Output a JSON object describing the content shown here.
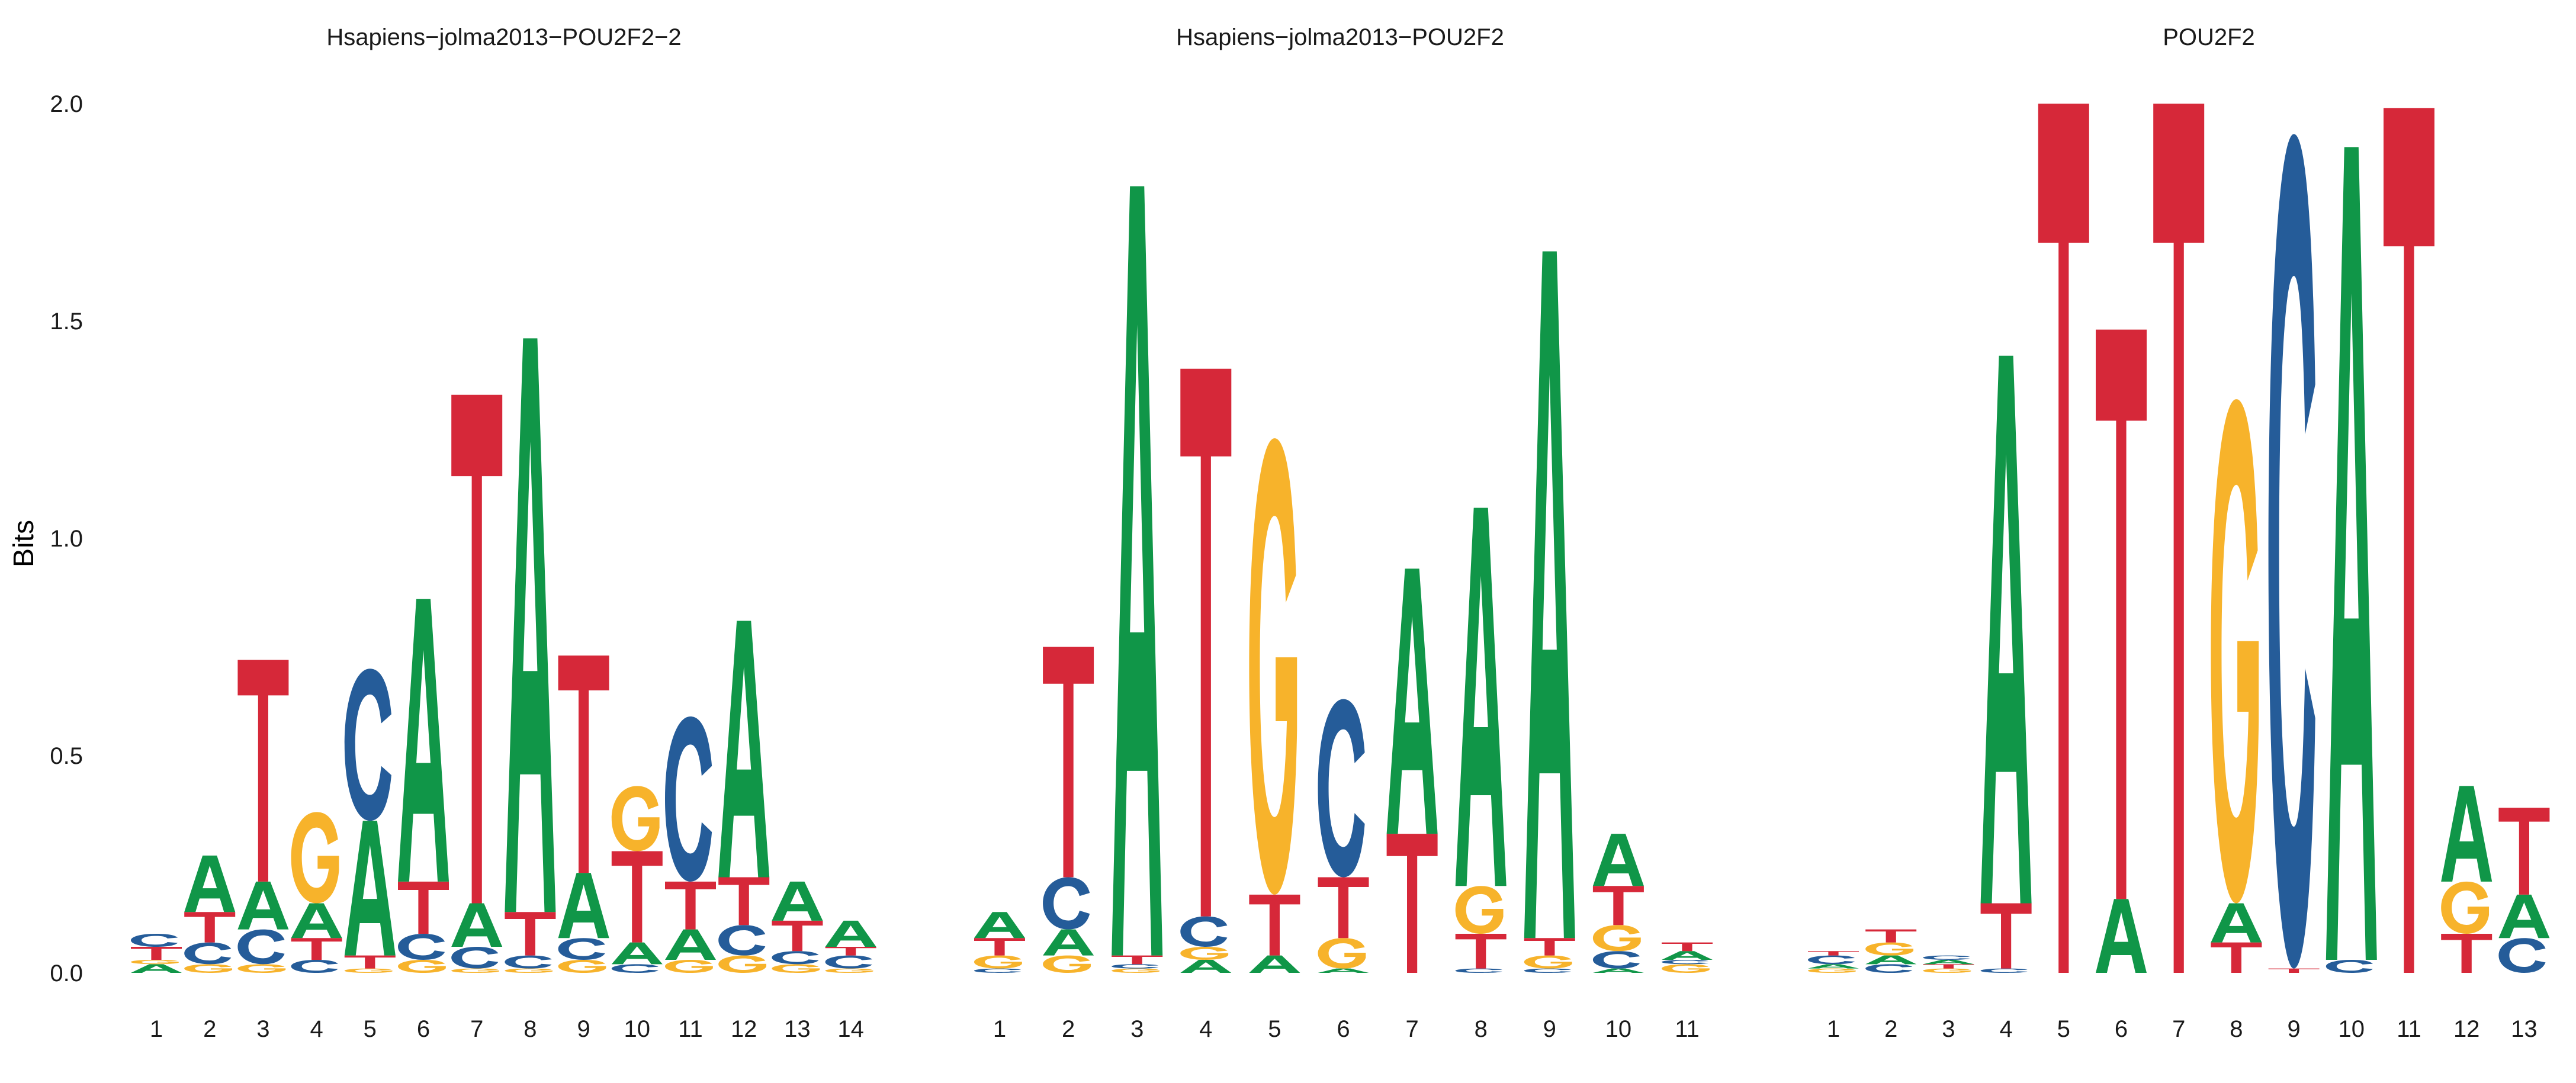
{
  "chart_data": {
    "type": "sequence-logo",
    "ylabel": "Bits",
    "ylim": [
      0,
      2
    ],
    "yticks": [
      0.0,
      0.5,
      1.0,
      1.5,
      2.0
    ],
    "ytick_labels": [
      "0.0",
      "0.5",
      "1.0",
      "1.5",
      "2.0"
    ],
    "grid": false,
    "colors": {
      "A": "#109648",
      "C": "#255c99",
      "G": "#f7b32b",
      "T": "#d62839"
    },
    "panels": [
      {
        "title": "Hsapiens−jolma2013−POU2F2−2",
        "positions": [
          {
            "pos": "1",
            "stack": [
              [
                "A",
                0.02
              ],
              [
                "G",
                0.01
              ],
              [
                "T",
                0.03
              ],
              [
                "C",
                0.03
              ]
            ]
          },
          {
            "pos": "2",
            "stack": [
              [
                "G",
                0.02
              ],
              [
                "C",
                0.05
              ],
              [
                "T",
                0.07
              ],
              [
                "A",
                0.13
              ]
            ]
          },
          {
            "pos": "3",
            "stack": [
              [
                "G",
                0.02
              ],
              [
                "C",
                0.08
              ],
              [
                "A",
                0.11
              ],
              [
                "T",
                0.51
              ]
            ]
          },
          {
            "pos": "4",
            "stack": [
              [
                "C",
                0.03
              ],
              [
                "T",
                0.05
              ],
              [
                "A",
                0.08
              ],
              [
                "G",
                0.21
              ]
            ]
          },
          {
            "pos": "5",
            "stack": [
              [
                "G",
                0.01
              ],
              [
                "T",
                0.03
              ],
              [
                "A",
                0.31
              ],
              [
                "C",
                0.35
              ]
            ]
          },
          {
            "pos": "6",
            "stack": [
              [
                "G",
                0.03
              ],
              [
                "C",
                0.06
              ],
              [
                "T",
                0.12
              ],
              [
                "A",
                0.65
              ]
            ]
          },
          {
            "pos": "7",
            "stack": [
              [
                "G",
                0.01
              ],
              [
                "C",
                0.05
              ],
              [
                "A",
                0.1
              ],
              [
                "T",
                1.17
              ]
            ]
          },
          {
            "pos": "8",
            "stack": [
              [
                "G",
                0.01
              ],
              [
                "C",
                0.03
              ],
              [
                "T",
                0.1
              ],
              [
                "A",
                1.32
              ]
            ]
          },
          {
            "pos": "9",
            "stack": [
              [
                "G",
                0.03
              ],
              [
                "C",
                0.05
              ],
              [
                "A",
                0.15
              ],
              [
                "T",
                0.5
              ]
            ]
          },
          {
            "pos": "10",
            "stack": [
              [
                "C",
                0.02
              ],
              [
                "A",
                0.05
              ],
              [
                "T",
                0.21
              ],
              [
                "G",
                0.15
              ]
            ]
          },
          {
            "pos": "11",
            "stack": [
              [
                "G",
                0.03
              ],
              [
                "A",
                0.07
              ],
              [
                "T",
                0.11
              ],
              [
                "C",
                0.38
              ]
            ]
          },
          {
            "pos": "12",
            "stack": [
              [
                "G",
                0.04
              ],
              [
                "C",
                0.07
              ],
              [
                "T",
                0.11
              ],
              [
                "A",
                0.59
              ]
            ]
          },
          {
            "pos": "13",
            "stack": [
              [
                "G",
                0.02
              ],
              [
                "C",
                0.03
              ],
              [
                "T",
                0.07
              ],
              [
                "A",
                0.09
              ]
            ]
          },
          {
            "pos": "14",
            "stack": [
              [
                "G",
                0.01
              ],
              [
                "C",
                0.03
              ],
              [
                "T",
                0.02
              ],
              [
                "A",
                0.06
              ]
            ]
          }
        ]
      },
      {
        "title": "Hsapiens−jolma2013−POU2F2",
        "positions": [
          {
            "pos": "1",
            "stack": [
              [
                "C",
                0.01
              ],
              [
                "G",
                0.03
              ],
              [
                "T",
                0.04
              ],
              [
                "A",
                0.06
              ]
            ]
          },
          {
            "pos": "2",
            "stack": [
              [
                "G",
                0.04
              ],
              [
                "A",
                0.06
              ],
              [
                "C",
                0.12
              ],
              [
                "T",
                0.53
              ]
            ]
          },
          {
            "pos": "3",
            "stack": [
              [
                "G",
                0.01
              ],
              [
                "C",
                0.01
              ],
              [
                "T",
                0.02
              ],
              [
                "A",
                1.77
              ]
            ]
          },
          {
            "pos": "4",
            "stack": [
              [
                "A",
                0.03
              ],
              [
                "G",
                0.03
              ],
              [
                "C",
                0.07
              ],
              [
                "T",
                1.26
              ]
            ]
          },
          {
            "pos": "5",
            "stack": [
              [
                "A",
                0.04
              ],
              [
                "T",
                0.14
              ],
              [
                "G",
                1.05
              ]
            ]
          },
          {
            "pos": "6",
            "stack": [
              [
                "A",
                0.01
              ],
              [
                "G",
                0.07
              ],
              [
                "T",
                0.14
              ],
              [
                "C",
                0.41
              ]
            ]
          },
          {
            "pos": "7",
            "stack": [
              [
                "T",
                0.32
              ],
              [
                "A",
                0.61
              ]
            ]
          },
          {
            "pos": "8",
            "stack": [
              [
                "C",
                0.01
              ],
              [
                "T",
                0.08
              ],
              [
                "G",
                0.11
              ],
              [
                "A",
                0.87
              ]
            ]
          },
          {
            "pos": "9",
            "stack": [
              [
                "C",
                0.01
              ],
              [
                "G",
                0.03
              ],
              [
                "T",
                0.04
              ],
              [
                "A",
                1.58
              ]
            ]
          },
          {
            "pos": "10",
            "stack": [
              [
                "A",
                0.01
              ],
              [
                "C",
                0.04
              ],
              [
                "G",
                0.06
              ],
              [
                "T",
                0.09
              ],
              [
                "A",
                0.12
              ]
            ]
          },
          {
            "pos": "11",
            "stack": [
              [
                "G",
                0.02
              ],
              [
                "C",
                0.01
              ],
              [
                "A",
                0.02
              ],
              [
                "T",
                0.02
              ]
            ]
          }
        ]
      },
      {
        "title": "POU2F2",
        "positions": [
          {
            "pos": "1",
            "stack": [
              [
                "G",
                0.01
              ],
              [
                "A",
                0.01
              ],
              [
                "C",
                0.02
              ],
              [
                "T",
                0.01
              ]
            ]
          },
          {
            "pos": "2",
            "stack": [
              [
                "C",
                0.02
              ],
              [
                "A",
                0.02
              ],
              [
                "G",
                0.03
              ],
              [
                "T",
                0.03
              ]
            ]
          },
          {
            "pos": "3",
            "stack": [
              [
                "G",
                0.01
              ],
              [
                "T",
                0.01
              ],
              [
                "A",
                0.01
              ],
              [
                "C",
                0.01
              ]
            ]
          },
          {
            "pos": "4",
            "stack": [
              [
                "C",
                0.01
              ],
              [
                "T",
                0.15
              ],
              [
                "A",
                1.26
              ]
            ]
          },
          {
            "pos": "5",
            "stack": [
              [
                "T",
                2.0
              ]
            ]
          },
          {
            "pos": "6",
            "stack": [
              [
                "A",
                0.17
              ],
              [
                "T",
                1.31
              ]
            ]
          },
          {
            "pos": "7",
            "stack": [
              [
                "T",
                2.0
              ]
            ]
          },
          {
            "pos": "8",
            "stack": [
              [
                "T",
                0.07
              ],
              [
                "A",
                0.09
              ],
              [
                "G",
                1.16
              ]
            ]
          },
          {
            "pos": "9",
            "stack": [
              [
                "T",
                0.01
              ],
              [
                "C",
                1.92
              ]
            ]
          },
          {
            "pos": "10",
            "stack": [
              [
                "C",
                0.03
              ],
              [
                "A",
                1.87
              ]
            ]
          },
          {
            "pos": "11",
            "stack": [
              [
                "T",
                1.99
              ]
            ]
          },
          {
            "pos": "12",
            "stack": [
              [
                "T",
                0.09
              ],
              [
                "G",
                0.12
              ],
              [
                "A",
                0.22
              ]
            ]
          },
          {
            "pos": "13",
            "stack": [
              [
                "C",
                0.08
              ],
              [
                "A",
                0.1
              ],
              [
                "T",
                0.2
              ]
            ]
          }
        ]
      }
    ]
  }
}
